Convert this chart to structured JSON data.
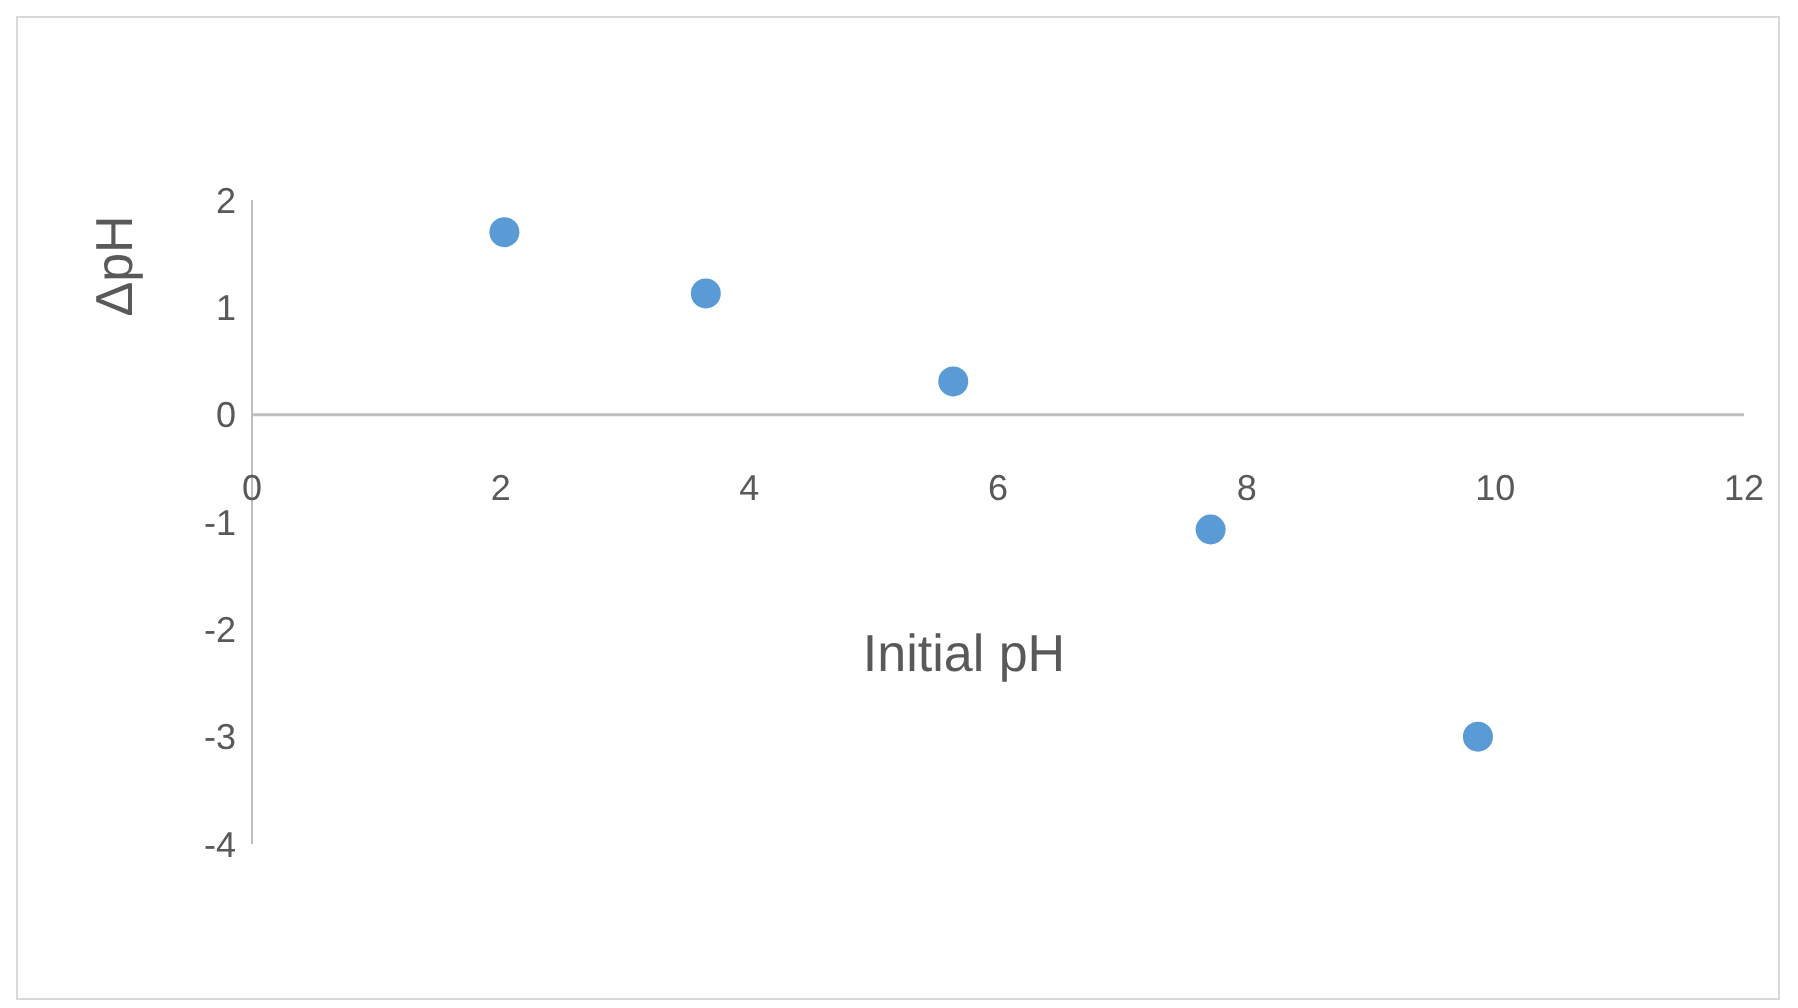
{
  "chart_data": {
    "type": "scatter",
    "xlabel": "Initial pH",
    "ylabel": "ΔpH",
    "x": [
      2.03,
      3.65,
      5.64,
      7.71,
      9.86
    ],
    "values": [
      1.7,
      1.13,
      0.31,
      -1.07,
      -3.0
    ],
    "color": "#5b9bd5",
    "marker": "circle",
    "xlim": [
      0,
      12
    ],
    "xticks": [
      0,
      2,
      4,
      6,
      8,
      10,
      12
    ],
    "ylim": [
      -4,
      2
    ],
    "yticks": [
      -4,
      -3,
      -2,
      -1,
      0,
      1,
      2
    ],
    "grid": false
  }
}
